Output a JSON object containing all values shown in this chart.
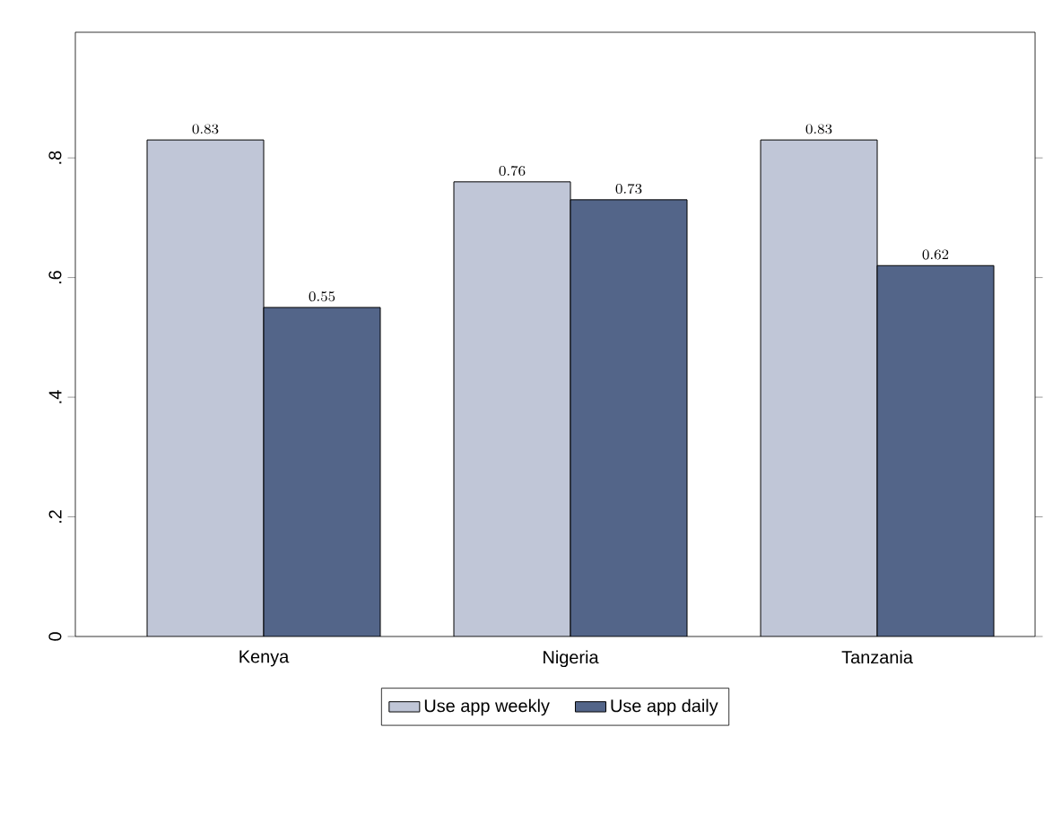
{
  "chart_data": {
    "type": "bar",
    "categories": [
      "Kenya",
      "Nigeria",
      "Tanzania"
    ],
    "series": [
      {
        "name": "Use app weekly",
        "color": "#c0c6d7",
        "values": [
          0.83,
          0.76,
          0.83
        ]
      },
      {
        "name": "Use app daily",
        "color": "#536589",
        "values": [
          0.55,
          0.73,
          0.62
        ]
      }
    ],
    "ylim": [
      0,
      1.01
    ],
    "yticks": [
      {
        "value": 0,
        "label": "0"
      },
      {
        "value": 0.2,
        "label": ".2"
      },
      {
        "value": 0.4,
        "label": ".4"
      },
      {
        "value": 0.6,
        "label": ".6"
      },
      {
        "value": 0.8,
        "label": ".8"
      }
    ],
    "data_labels": true,
    "legend": "bottom"
  }
}
